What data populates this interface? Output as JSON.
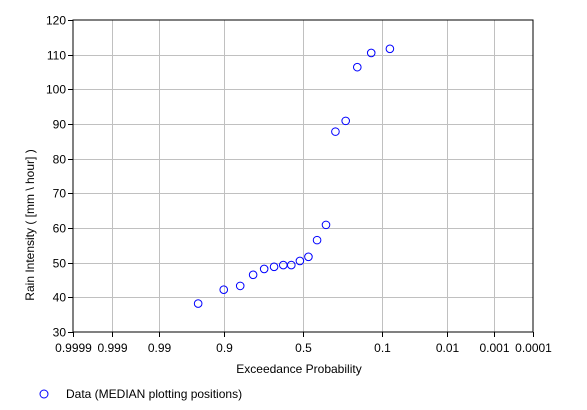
{
  "chart_data": {
    "type": "scatter",
    "title": "",
    "xlabel": "Exceedance Probability",
    "ylabel": "Rain Intensity ( [mm \\ hour] )",
    "x_scale": "normal-probability",
    "x_ticks": [
      0.9999,
      0.999,
      0.99,
      0.9,
      0.5,
      0.1,
      0.01,
      0.001,
      0.0001
    ],
    "x_tick_labels": [
      "0.9999",
      "0.999",
      "0.99",
      "0.9",
      "0.5",
      "0.1",
      "0.01",
      "0.001",
      "0.0001"
    ],
    "ylim": [
      30,
      120
    ],
    "y_ticks": [
      30,
      40,
      50,
      60,
      70,
      80,
      90,
      100,
      110,
      120
    ],
    "grid": true,
    "legend_position": "bottom-left",
    "series": [
      {
        "name": "Data (MEDIAN plotting positions)",
        "marker": "open-circle",
        "color": "#0000ff",
        "points": [
          {
            "x": 0.955,
            "y": 38.2
          },
          {
            "x": 0.9,
            "y": 42.2
          },
          {
            "x": 0.845,
            "y": 43.3
          },
          {
            "x": 0.79,
            "y": 46.5
          },
          {
            "x": 0.735,
            "y": 48.2
          },
          {
            "x": 0.68,
            "y": 48.8
          },
          {
            "x": 0.625,
            "y": 49.3
          },
          {
            "x": 0.575,
            "y": 49.3
          },
          {
            "x": 0.52,
            "y": 50.5
          },
          {
            "x": 0.465,
            "y": 51.7
          },
          {
            "x": 0.41,
            "y": 56.5
          },
          {
            "x": 0.355,
            "y": 60.9
          },
          {
            "x": 0.3,
            "y": 87.8
          },
          {
            "x": 0.245,
            "y": 90.9
          },
          {
            "x": 0.19,
            "y": 106.4
          },
          {
            "x": 0.135,
            "y": 110.5
          },
          {
            "x": 0.08,
            "y": 111.7
          }
        ]
      }
    ]
  }
}
